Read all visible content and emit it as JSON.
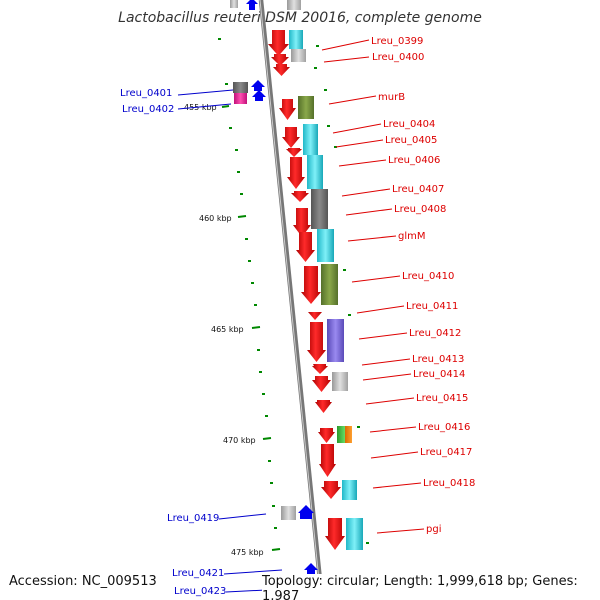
{
  "title": "Lactobacillus reuteri DSM 20016, complete genome",
  "footer": {
    "accession": "Accession: NC_009513",
    "summary": "Topology: circular; Length: 1,999,618 bp; Genes: 1,987"
  },
  "colors": {
    "forward_label": "#dd0000",
    "reverse_label": "#0000cc",
    "gene": "#ee0000",
    "backbone": "#888888",
    "tick": "#008800"
  },
  "scale_ticks": [
    "455 kbp",
    "460 kbp",
    "465 kbp",
    "470 kbp",
    "475 kbp"
  ],
  "forward_labels": [
    "Lreu_0399",
    "Lreu_0400",
    "murB",
    "Lreu_0404",
    "Lreu_0405",
    "Lreu_0406",
    "Lreu_0407",
    "Lreu_0408",
    "glmM",
    "Lreu_0410",
    "Lreu_0411",
    "Lreu_0412",
    "Lreu_0413",
    "Lreu_0414",
    "Lreu_0415",
    "Lreu_0416",
    "Lreu_0417",
    "Lreu_0418",
    "pgi"
  ],
  "reverse_labels": [
    "Lreu_0401",
    "Lreu_0402",
    "Lreu_0419",
    "Lreu_0421",
    "Lreu_0423"
  ]
}
